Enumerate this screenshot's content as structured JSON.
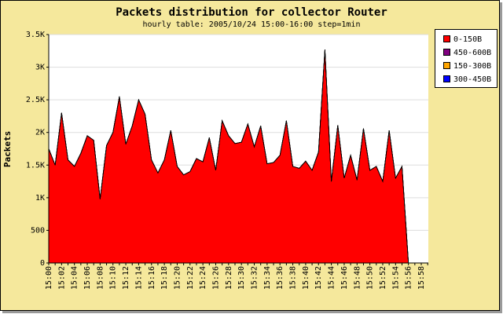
{
  "chart_data": {
    "type": "stacked-area",
    "title": "Packets distribution for collector Router",
    "subtitle": "hourly table: 2005/10/24 15:00-16:00 step=1min",
    "y_label": "Packets",
    "categories": [
      "15:00",
      null,
      "15:02",
      null,
      "15:04",
      null,
      "15:06",
      null,
      "15:08",
      null,
      "15:10",
      null,
      "15:12",
      null,
      "15:14",
      null,
      "15:16",
      null,
      "15:18",
      null,
      "15:20",
      null,
      "15:22",
      null,
      "15:24",
      null,
      "15:26",
      null,
      "15:28",
      null,
      "15:30",
      null,
      "15:32",
      null,
      "15:34",
      null,
      "15:36",
      null,
      "15:38",
      null,
      "15:40",
      null,
      "15:42",
      null,
      "15:44",
      null,
      "15:46",
      null,
      "15:48",
      null,
      "15:50",
      null,
      "15:52",
      null,
      "15:54",
      null,
      "15:56",
      null,
      "15:58",
      null
    ],
    "series": [
      {
        "name": "0-150B",
        "color": "#ff0000",
        "values": [
          1750,
          1500,
          2300,
          1580,
          1480,
          1680,
          1950,
          1880,
          980,
          1800,
          2000,
          2550,
          1820,
          2100,
          2500,
          2280,
          1580,
          1380,
          1580,
          2030,
          1480,
          1350,
          1400,
          1600,
          1550,
          1920,
          1420,
          2180,
          1950,
          1830,
          1850,
          2130,
          1780,
          2100,
          1520,
          1540,
          1650,
          2180,
          1480,
          1450,
          1560,
          1420,
          1700,
          3270,
          1250,
          2110,
          1300,
          1650,
          1270,
          2060,
          1420,
          1480,
          1250,
          2030,
          1300,
          1480,
          0,
          null,
          null,
          null
        ]
      },
      {
        "name": "450-600B",
        "color": "#800080",
        "values": [
          0,
          0,
          0,
          0,
          0,
          0,
          0,
          0,
          0,
          0,
          0,
          0,
          0,
          0,
          0,
          0,
          0,
          0,
          0,
          0,
          0,
          0,
          0,
          0,
          0,
          0,
          0,
          0,
          0,
          0,
          0,
          0,
          0,
          0,
          0,
          0,
          0,
          0,
          0,
          0,
          0,
          0,
          0,
          0,
          0,
          0,
          0,
          0,
          0,
          0,
          0,
          0,
          0,
          0,
          0,
          0,
          0,
          null,
          null,
          null
        ]
      },
      {
        "name": "150-300B",
        "color": "#ffa500",
        "values": [
          0,
          0,
          0,
          0,
          0,
          0,
          0,
          0,
          0,
          0,
          0,
          0,
          0,
          0,
          0,
          0,
          0,
          0,
          0,
          0,
          0,
          0,
          0,
          0,
          0,
          0,
          0,
          0,
          0,
          0,
          0,
          0,
          0,
          0,
          0,
          0,
          0,
          0,
          0,
          0,
          0,
          0,
          0,
          0,
          0,
          0,
          0,
          0,
          0,
          0,
          0,
          0,
          0,
          0,
          0,
          0,
          0,
          null,
          null,
          null
        ]
      },
      {
        "name": "300-450B",
        "color": "#0000ff",
        "values": [
          0,
          0,
          0,
          0,
          0,
          0,
          0,
          0,
          0,
          0,
          0,
          0,
          0,
          0,
          0,
          0,
          0,
          0,
          0,
          0,
          0,
          0,
          0,
          0,
          0,
          0,
          0,
          0,
          0,
          0,
          0,
          0,
          0,
          0,
          0,
          0,
          0,
          0,
          0,
          0,
          0,
          0,
          0,
          0,
          0,
          0,
          0,
          0,
          0,
          0,
          0,
          0,
          0,
          0,
          0,
          0,
          0,
          null,
          null,
          null
        ]
      }
    ],
    "ylim": [
      0,
      3500
    ],
    "yticks": [
      0,
      500,
      {
        "value": 1000,
        "label": "1K"
      },
      {
        "value": 1500,
        "label": "1.5K"
      },
      {
        "value": 2000,
        "label": "2K"
      },
      {
        "value": 2500,
        "label": "2.5K"
      },
      {
        "value": 3000,
        "label": "3K"
      },
      {
        "value": 3500,
        "label": "3.5K"
      }
    ],
    "grid": true,
    "legend": "top-right"
  }
}
